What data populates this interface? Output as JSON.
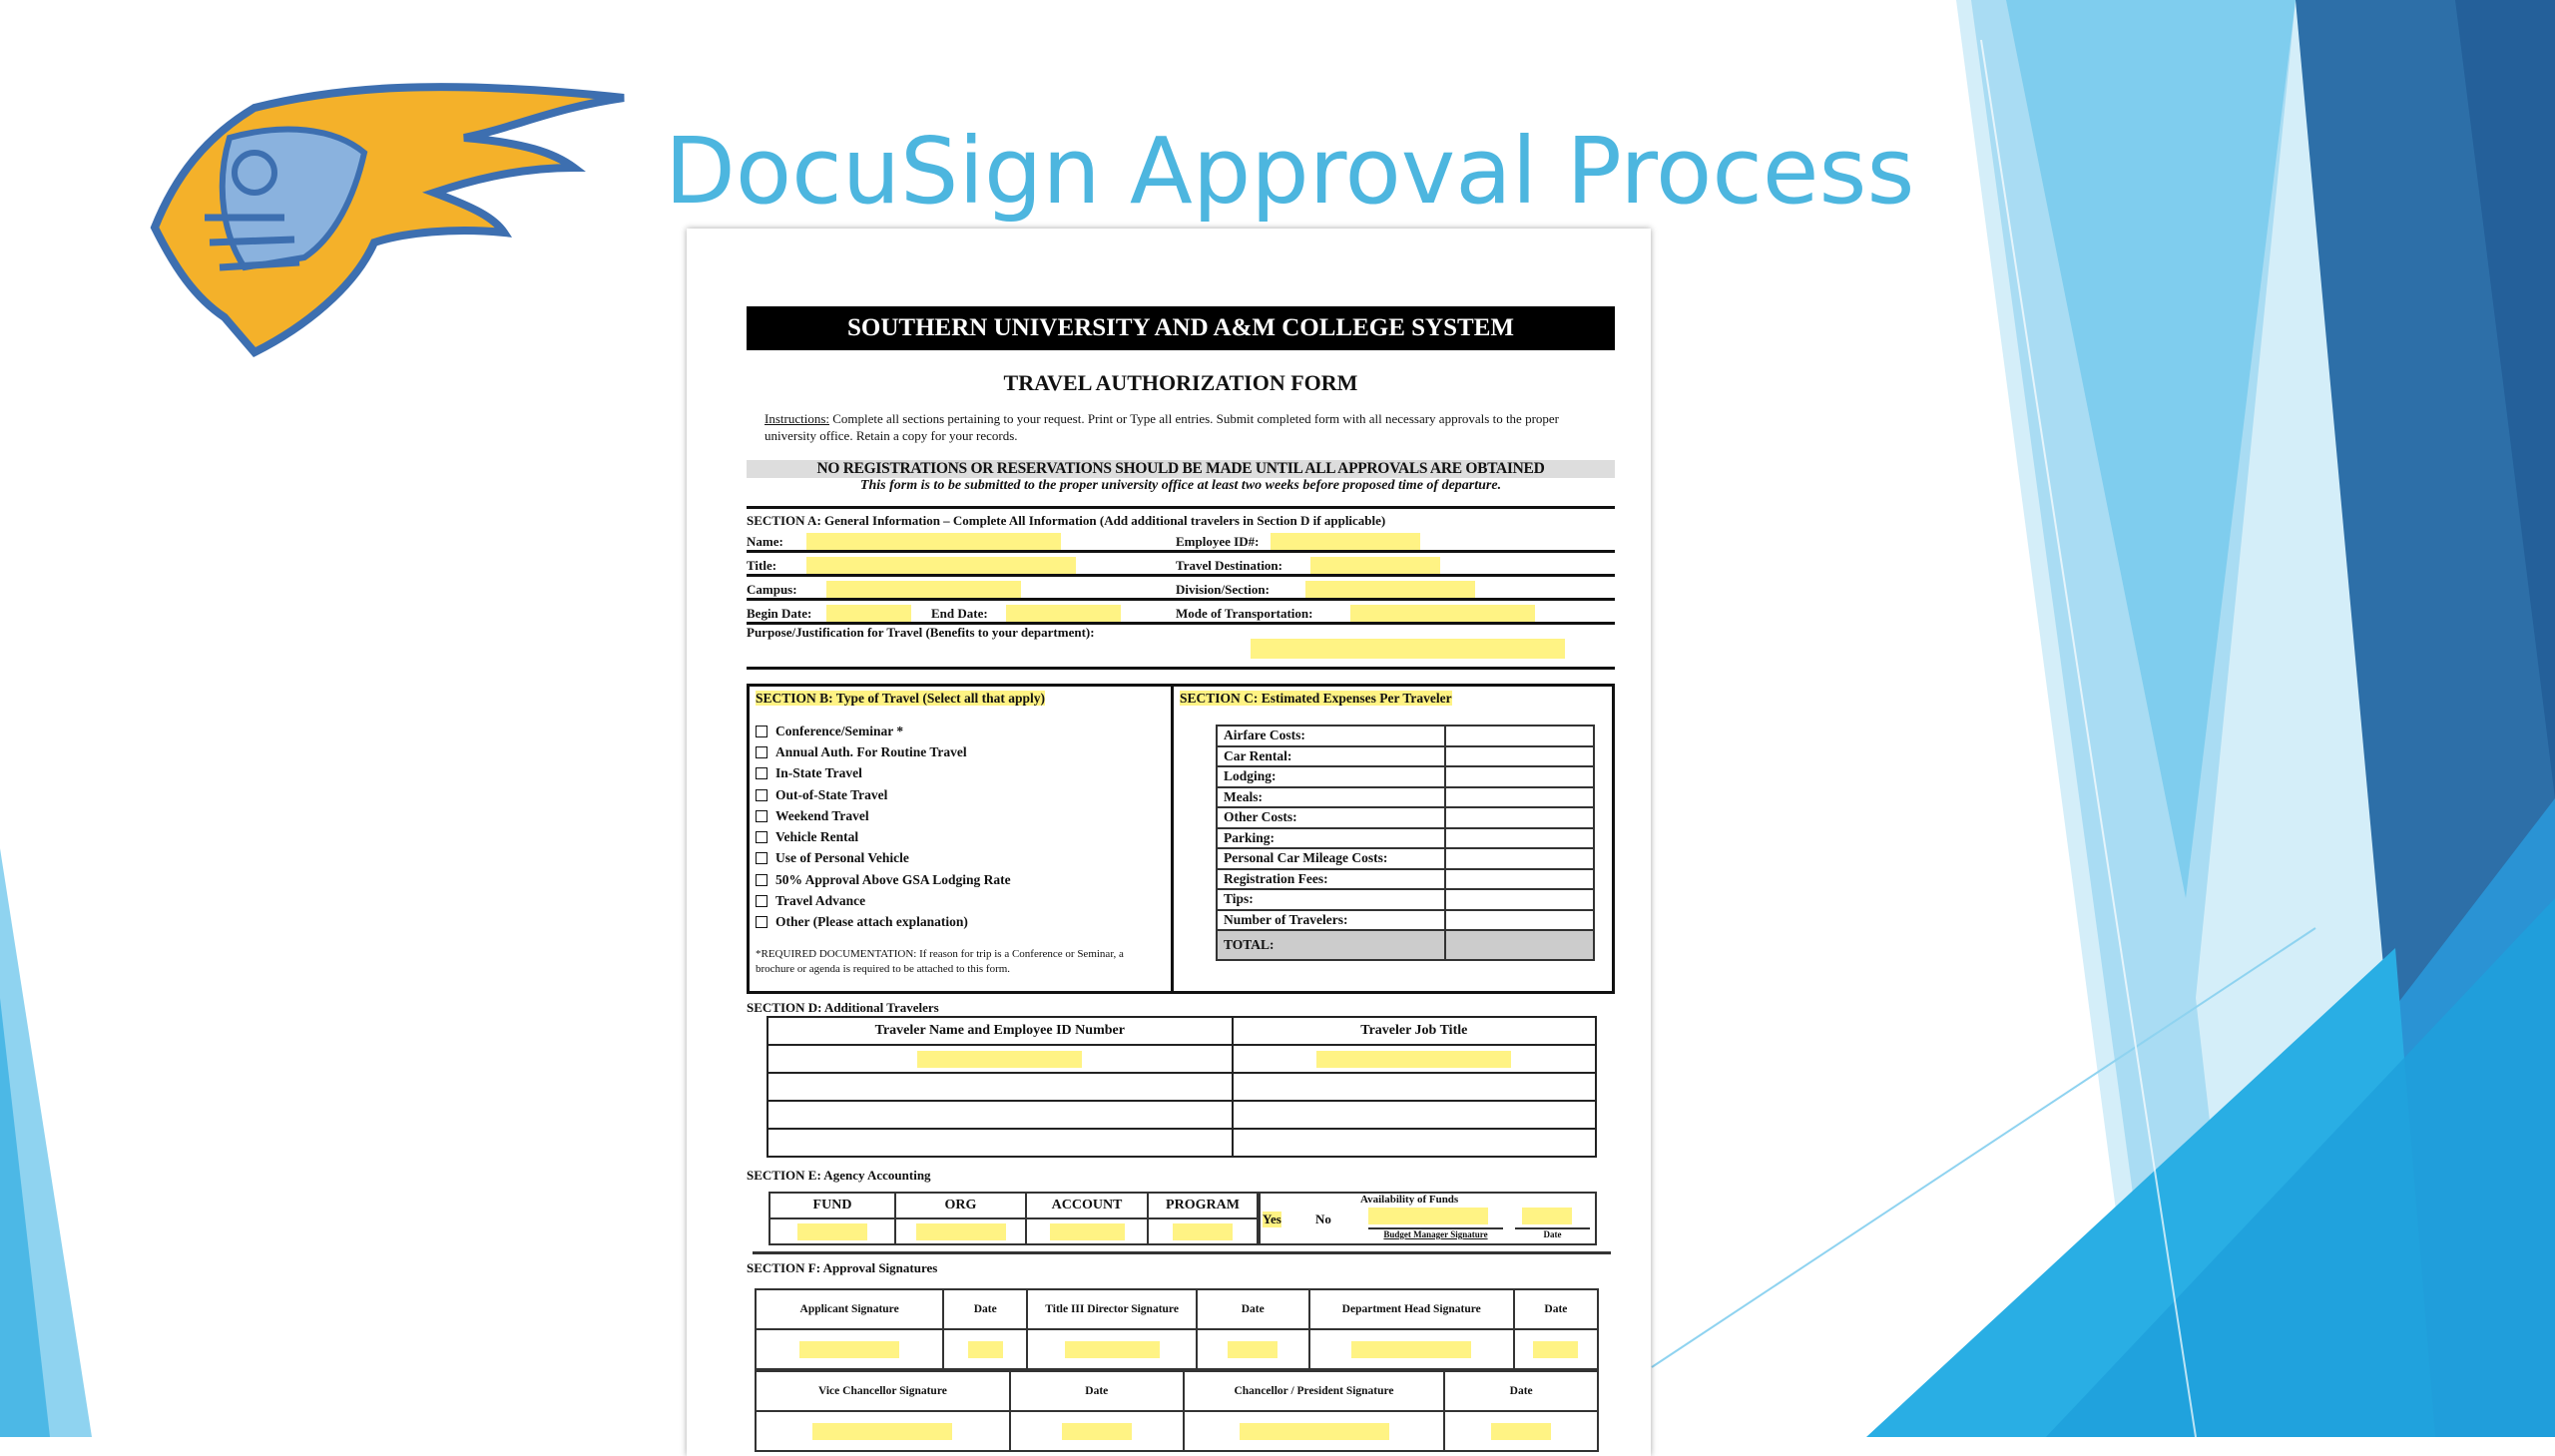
{
  "slide": {
    "title": "DocuSign Approval Process",
    "logo": "knight-helmet-logo",
    "colors": {
      "title": "#4db6df",
      "highlight": "#ffee50",
      "accent_dark": "#2d6fa8",
      "accent_light": "#7fcdee"
    }
  },
  "form": {
    "header": "SOUTHERN UNIVERSITY AND A&M COLLEGE SYSTEM",
    "title": "TRAVEL AUTHORIZATION FORM",
    "instructions_label": "Instructions:",
    "instructions": "Complete all sections pertaining to your request. Print or Type all entries. Submit completed form with all necessary approvals to the proper university office.  Retain a copy for your records.",
    "warning": "NO REGISTRATIONS OR RESERVATIONS SHOULD BE MADE UNTIL ALL APPROVALS ARE OBTAINED",
    "notice": "This form is to be submitted to the proper university office at least two weeks before proposed time of departure.",
    "sectionA": {
      "heading": "SECTION A: General Information – Complete All Information (Add additional travelers in Section D if applicable)",
      "name": "Name:",
      "employee_id": "Employee ID#:",
      "title": "Title:",
      "destination": "Travel Destination:",
      "campus": "Campus:",
      "division": "Division/Section:",
      "begin_date": "Begin Date:",
      "end_date": "End Date:",
      "transport": "Mode of Transportation:",
      "purpose": "Purpose/Justification for Travel (Benefits to your department):"
    },
    "sectionB": {
      "heading": "SECTION B: Type of Travel (Select all that apply)",
      "options": [
        "Conference/Seminar *",
        "Annual Auth. For Routine Travel",
        "In-State Travel",
        "Out-of-State Travel",
        "Weekend Travel",
        "Vehicle Rental",
        "Use of Personal Vehicle",
        "50% Approval Above GSA Lodging Rate",
        "Travel Advance",
        "Other (Please attach explanation)"
      ],
      "note": "*REQUIRED DOCUMENTATION: If reason for trip is a Conference or Seminar, a brochure or agenda is required to be attached to this form."
    },
    "sectionC": {
      "heading": "SECTION C: Estimated Expenses Per Traveler",
      "items": [
        "Airfare Costs:",
        "Car Rental:",
        "Lodging:",
        "Meals:",
        "Other Costs:",
        "Parking:",
        "Personal Car Mileage Costs:",
        "Registration Fees:",
        "Tips:",
        "Number of Travelers:"
      ],
      "total": "TOTAL:"
    },
    "sectionD": {
      "heading": "SECTION D:  Additional Travelers",
      "col1": "Traveler Name and Employee ID Number",
      "col2": "Traveler Job Title"
    },
    "sectionE": {
      "heading": "SECTION E:  Agency Accounting",
      "cols": [
        "FUND",
        "ORG",
        "ACCOUNT",
        "PROGRAM"
      ],
      "availability": "Availability of Funds",
      "yes": "Yes",
      "no": "No",
      "budget_sig": "Budget Manager Signature",
      "date": "Date"
    },
    "sectionF": {
      "heading": "SECTION F:  Approval Signatures",
      "row1": [
        "Applicant Signature",
        "Date",
        "Title III Director Signature",
        "Date",
        "Department Head Signature",
        "Date"
      ],
      "row2": [
        "Vice Chancellor Signature",
        "Date",
        "Chancellor / President Signature",
        "Date"
      ]
    }
  }
}
